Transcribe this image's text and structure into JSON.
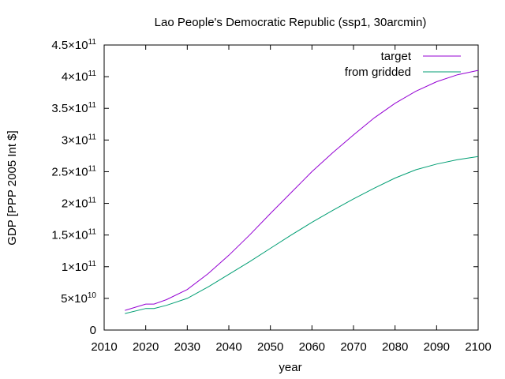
{
  "chart_data": {
    "type": "line",
    "title": "Lao People's Democratic Republic (ssp1, 30arcmin)",
    "xlabel": "year",
    "ylabel": "GDP [PPP 2005 Int $]",
    "xlim": [
      2010,
      2100
    ],
    "ylim": [
      0,
      450000000000
    ],
    "grid": false,
    "legend_position": "top-right",
    "x_ticks": [
      {
        "value": 2010,
        "label": "2010"
      },
      {
        "value": 2020,
        "label": "2020"
      },
      {
        "value": 2030,
        "label": "2030"
      },
      {
        "value": 2040,
        "label": "2040"
      },
      {
        "value": 2050,
        "label": "2050"
      },
      {
        "value": 2060,
        "label": "2060"
      },
      {
        "value": 2070,
        "label": "2070"
      },
      {
        "value": 2080,
        "label": "2080"
      },
      {
        "value": 2090,
        "label": "2090"
      },
      {
        "value": 2100,
        "label": "2100"
      }
    ],
    "y_ticks": [
      {
        "value": 0,
        "mant": "0",
        "exp": ""
      },
      {
        "value": 50000000000,
        "mant": "5×10",
        "exp": "10"
      },
      {
        "value": 100000000000,
        "mant": "1×10",
        "exp": "11"
      },
      {
        "value": 150000000000,
        "mant": "1.5×10",
        "exp": "11"
      },
      {
        "value": 200000000000,
        "mant": "2×10",
        "exp": "11"
      },
      {
        "value": 250000000000,
        "mant": "2.5×10",
        "exp": "11"
      },
      {
        "value": 300000000000,
        "mant": "3×10",
        "exp": "11"
      },
      {
        "value": 350000000000,
        "mant": "3.5×10",
        "exp": "11"
      },
      {
        "value": 400000000000,
        "mant": "4×10",
        "exp": "11"
      },
      {
        "value": 450000000000,
        "mant": "4.5×10",
        "exp": "11"
      }
    ],
    "x": [
      2015,
      2020,
      2022,
      2025,
      2030,
      2035,
      2040,
      2045,
      2050,
      2055,
      2060,
      2065,
      2070,
      2075,
      2080,
      2085,
      2090,
      2095,
      2100
    ],
    "series": [
      {
        "name": "target",
        "color": "#9400d3",
        "values": [
          31000000000,
          41000000000,
          41000000000,
          48000000000,
          64000000000,
          89000000000,
          118000000000,
          150000000000,
          184000000000,
          217000000000,
          250000000000,
          280000000000,
          308000000000,
          335000000000,
          358000000000,
          377000000000,
          392000000000,
          403000000000,
          410000000000
        ]
      },
      {
        "name": "from gridded",
        "color": "#009e73",
        "values": [
          26000000000,
          34000000000,
          34000000000,
          39000000000,
          50000000000,
          68000000000,
          88000000000,
          108000000000,
          129000000000,
          150000000000,
          170000000000,
          189000000000,
          207000000000,
          224000000000,
          240000000000,
          253000000000,
          262000000000,
          269000000000,
          274000000000
        ]
      }
    ]
  }
}
